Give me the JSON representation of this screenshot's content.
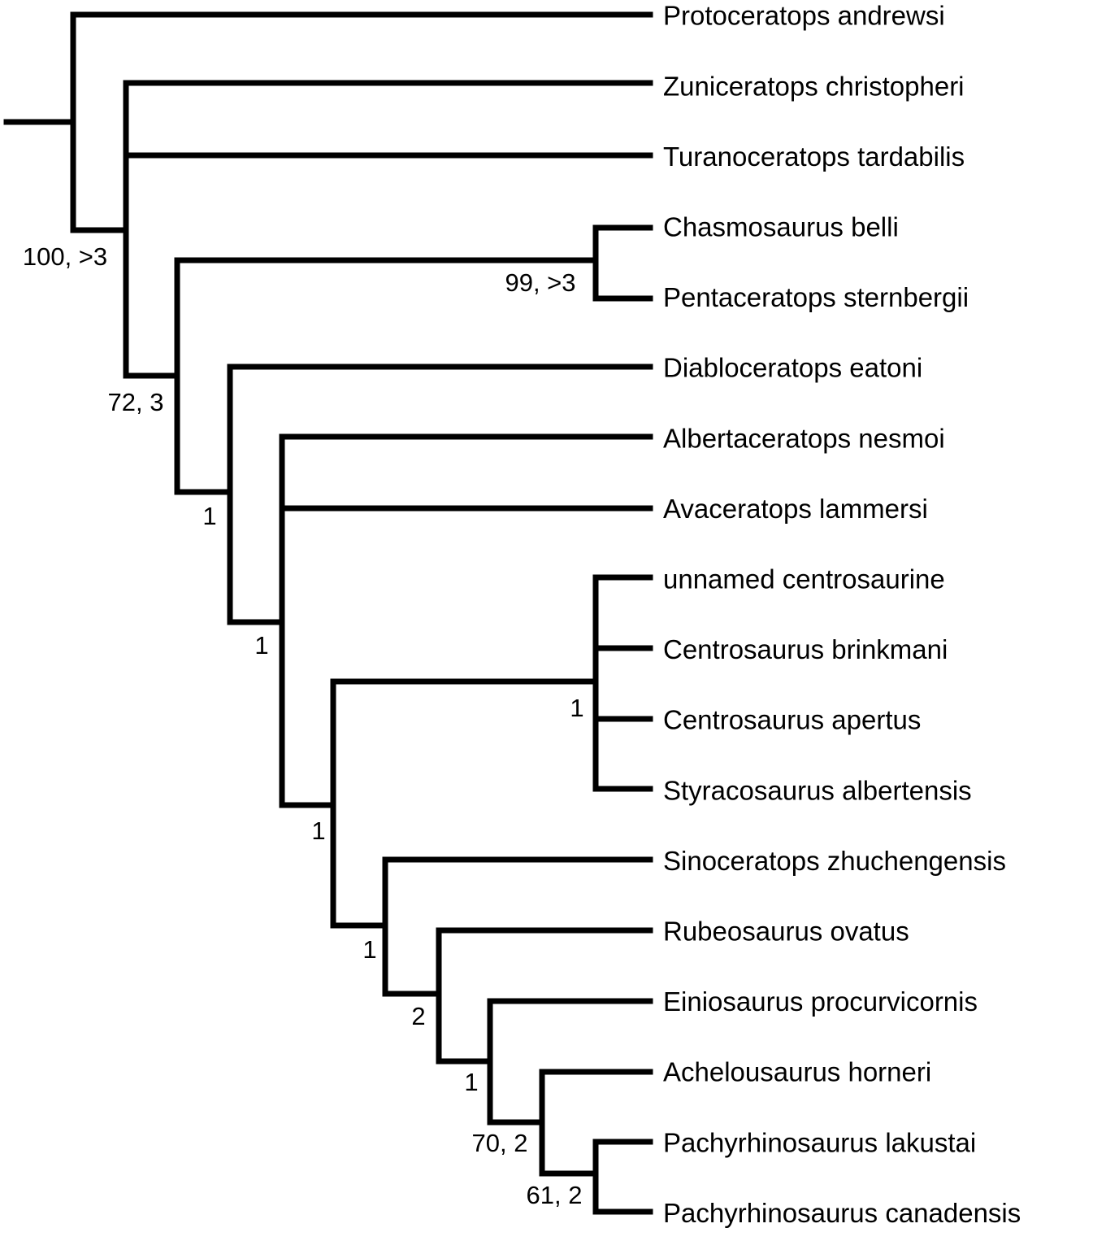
{
  "taxa": [
    "Protoceratops andrewsi",
    "Zuniceratops christopheri",
    "Turanoceratops tardabilis",
    "Chasmosaurus belli",
    "Pentaceratops sternbergii",
    "Diabloceratops eatoni",
    "Albertaceratops nesmoi",
    "Avaceratops lammersi",
    "unnamed centrosaurine",
    "Centrosaurus brinkmani",
    "Centrosaurus apertus",
    "Styracosaurus albertensis",
    "Sinoceratops zhuchengensis",
    "Rubeosaurus ovatus",
    "Einiosaurus procurvicornis",
    "Achelousaurus horneri",
    "Pachyrhinosaurus lakustai",
    "Pachyrhinosaurus canadensis"
  ],
  "node_labels": [
    "100, >3",
    "72, 3",
    "99, >3",
    "1",
    "1",
    "1",
    "1",
    "1",
    "2",
    "1",
    "70, 2",
    "61, 2"
  ]
}
